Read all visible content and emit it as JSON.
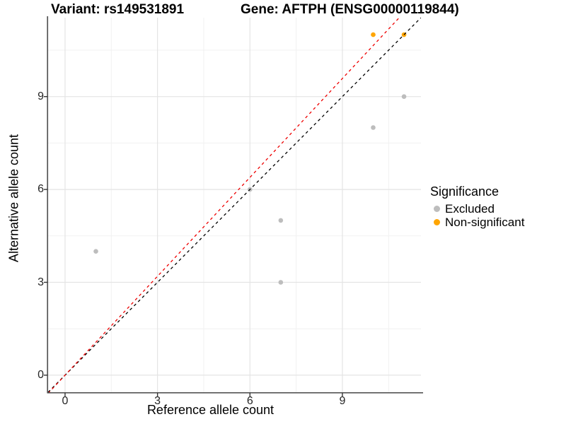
{
  "chart_data": {
    "type": "scatter",
    "title_left": "Variant: rs149531891",
    "title_right": "Gene: AFTPH (ENSG00000119844)",
    "xlabel": "Reference allele count",
    "ylabel": "Alternative allele count",
    "xlim": [
      -0.55,
      11.55
    ],
    "ylim": [
      -0.55,
      11.55
    ],
    "xticks": [
      0,
      3,
      6,
      9
    ],
    "yticks": [
      0,
      3,
      6,
      9
    ],
    "minor_xticks": [
      1.5,
      4.5,
      7.5,
      10.5
    ],
    "minor_yticks": [
      1.5,
      4.5,
      7.5,
      10.5
    ],
    "grid": "major and minor gridlines, light gray on white panel",
    "legend": {
      "title": "Significance",
      "position": "right",
      "items": [
        {
          "label": "Excluded",
          "color": "#bdbdbd"
        },
        {
          "label": "Non-significant",
          "color": "#ffa500"
        }
      ]
    },
    "series": [
      {
        "name": "Excluded",
        "color": "#bdbdbd",
        "points": [
          [
            1,
            4
          ],
          [
            6,
            6
          ],
          [
            7,
            3
          ],
          [
            7,
            5
          ],
          [
            10,
            8
          ],
          [
            11,
            9
          ]
        ]
      },
      {
        "name": "Non-significant",
        "color": "#ffa500",
        "points": [
          [
            10,
            11
          ],
          [
            11,
            11
          ]
        ]
      }
    ],
    "lines": [
      {
        "name": "identity",
        "color": "#000000",
        "style": "dashed",
        "slope": 1,
        "intercept": 0
      },
      {
        "name": "fit",
        "color": "#ee0000",
        "style": "dashed",
        "slope": 1.065,
        "intercept": 0
      }
    ]
  },
  "colors": {
    "grid_major": "#e4e4e4",
    "grid_minor": "#f1f1f1",
    "axis_line": "#555555",
    "tick_mark": "#333333",
    "tick_text": "#262626"
  }
}
